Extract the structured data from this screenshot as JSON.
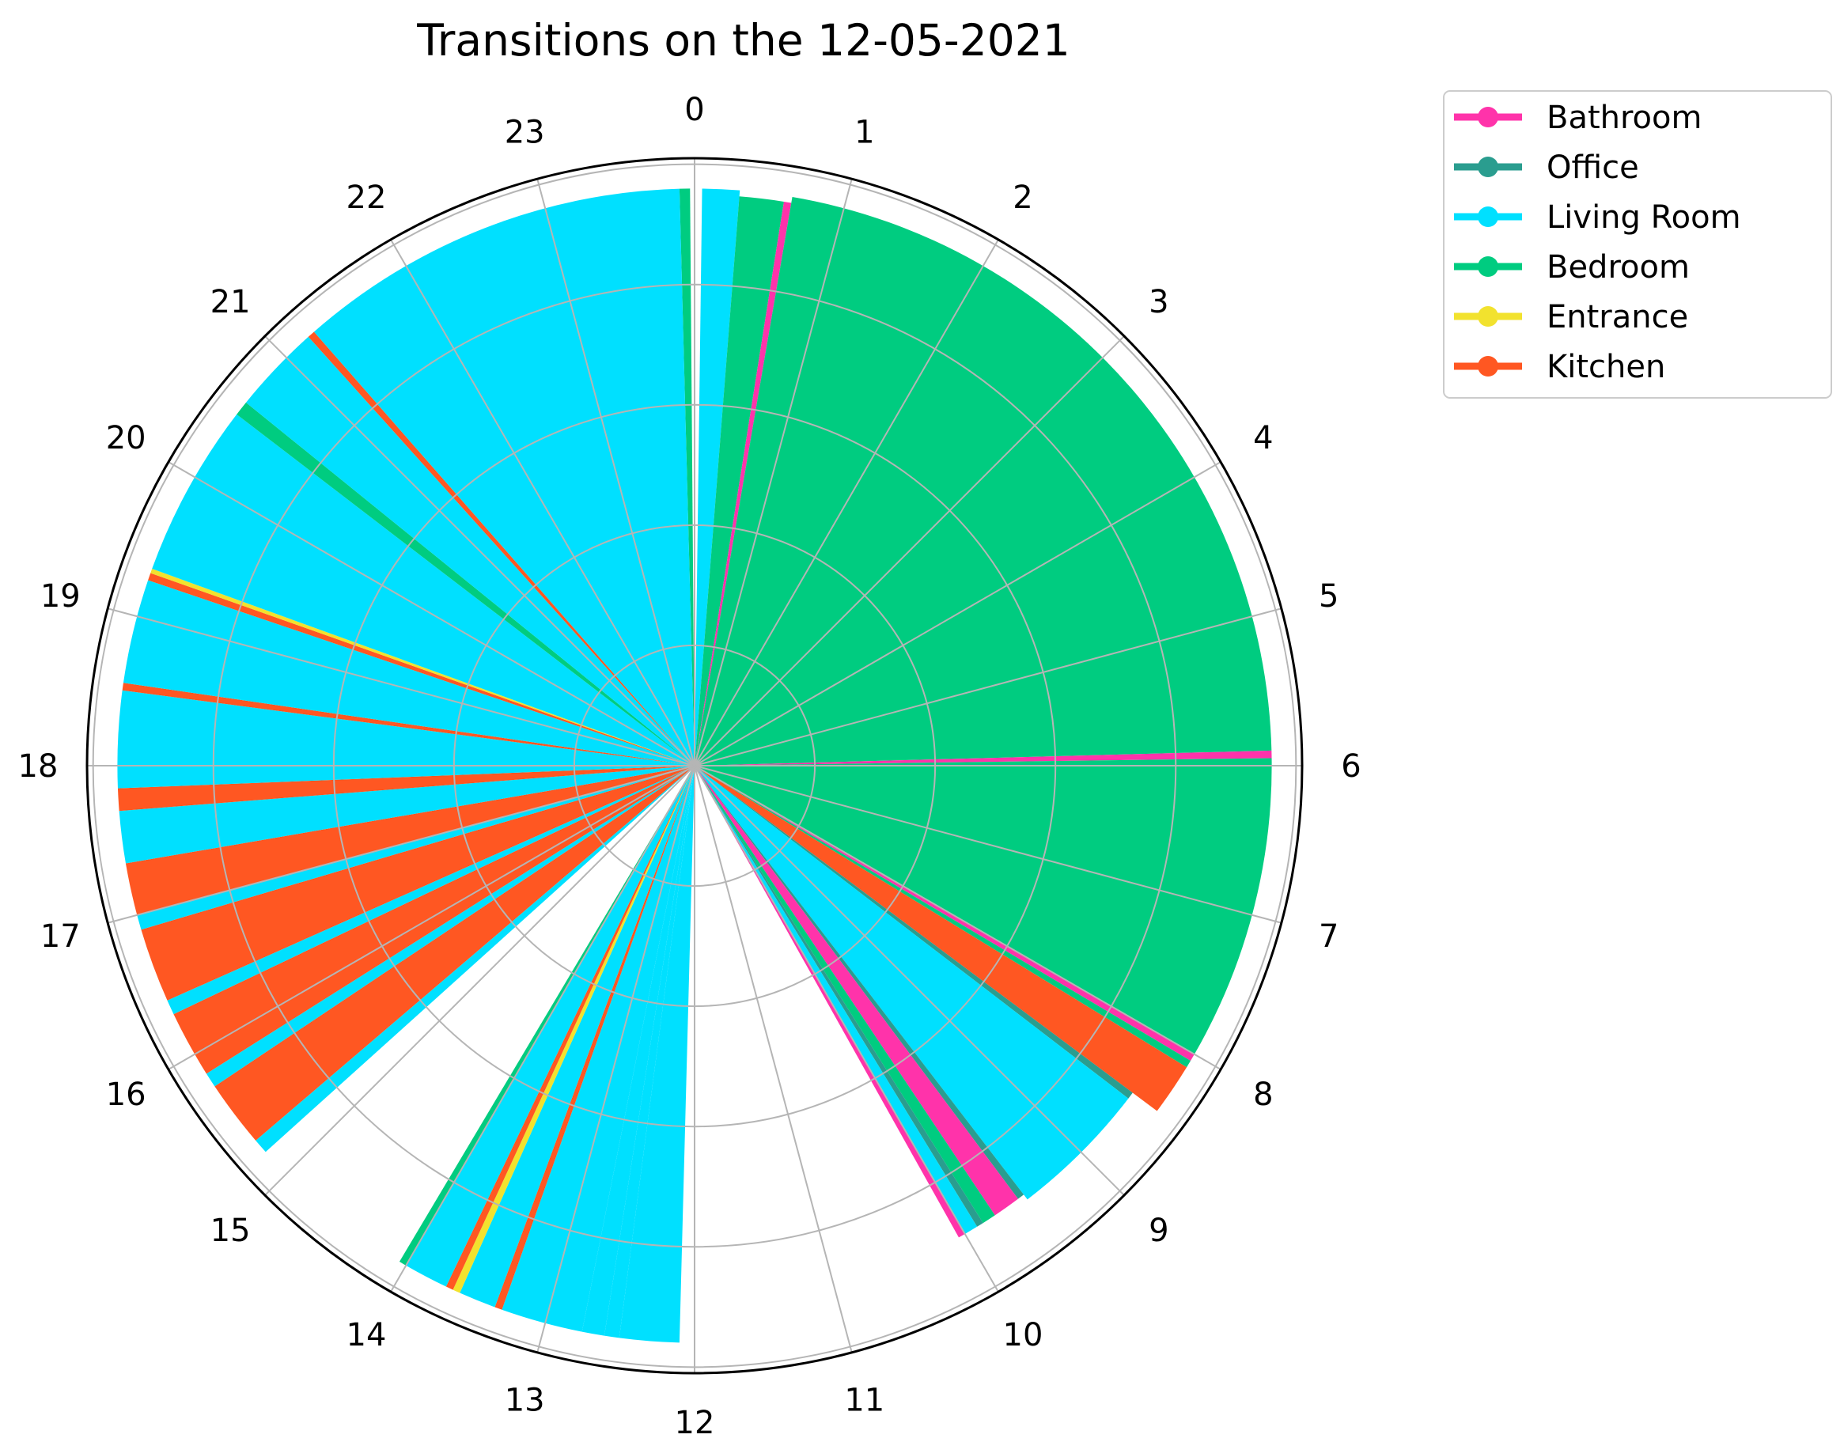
{
  "chart_data": {
    "type": "polar-bar",
    "title": "Transitions on the 12-05-2021",
    "angular_ticks": [
      "0",
      "1",
      "2",
      "3",
      "4",
      "5",
      "6",
      "7",
      "8",
      "9",
      "10",
      "11",
      "12",
      "13",
      "14",
      "15",
      "16",
      "17",
      "18",
      "19",
      "20",
      "21",
      "22",
      "23"
    ],
    "angular_range": [
      0,
      24
    ],
    "direction": "clockwise",
    "zero_location": "top",
    "radial_grid": true,
    "radial_ticks_visible": false,
    "legend_position": "right",
    "legend": [
      {
        "name": "Bathroom",
        "color": "#ff33aa"
      },
      {
        "name": "Office",
        "color": "#2a9d8f"
      },
      {
        "name": "Living Room",
        "color": "#00e0ff"
      },
      {
        "name": "Bedroom",
        "color": "#00cc80"
      },
      {
        "name": "Entrance",
        "color": "#f2e22e"
      },
      {
        "name": "Kitchen",
        "color": "#ff5722"
      }
    ],
    "segments": [
      {
        "start": 23.9,
        "end": 23.97,
        "room": "Bedroom",
        "radius": 0.95
      },
      {
        "start": 0.05,
        "end": 0.3,
        "room": "Living Room",
        "radius": 0.95
      },
      {
        "start": 0.3,
        "end": 0.6,
        "room": "Bedroom",
        "radius": 0.94
      },
      {
        "start": 0.6,
        "end": 0.65,
        "room": "Bathroom",
        "radius": 0.94
      },
      {
        "start": 0.65,
        "end": 5.9,
        "room": "Bedroom",
        "radius": 0.95
      },
      {
        "start": 5.9,
        "end": 5.95,
        "room": "Bathroom",
        "radius": 0.95
      },
      {
        "start": 5.95,
        "end": 8.0,
        "room": "Bedroom",
        "radius": 0.95
      },
      {
        "start": 8.0,
        "end": 8.05,
        "room": "Bathroom",
        "radius": 0.95
      },
      {
        "start": 8.05,
        "end": 8.1,
        "room": "Bedroom",
        "radius": 0.95
      },
      {
        "start": 8.1,
        "end": 8.45,
        "room": "Kitchen",
        "radius": 0.95
      },
      {
        "start": 8.45,
        "end": 8.5,
        "room": "Office",
        "radius": 0.9
      },
      {
        "start": 8.5,
        "end": 9.5,
        "room": "Living Room",
        "radius": 0.9
      },
      {
        "start": 9.5,
        "end": 9.55,
        "room": "Office",
        "radius": 0.89
      },
      {
        "start": 9.55,
        "end": 9.75,
        "room": "Bathroom",
        "radius": 0.89
      },
      {
        "start": 9.75,
        "end": 9.85,
        "room": "Bedroom",
        "radius": 0.89
      },
      {
        "start": 9.85,
        "end": 9.9,
        "room": "Office",
        "radius": 0.89
      },
      {
        "start": 9.9,
        "end": 10.0,
        "room": "Living Room",
        "radius": 0.89
      },
      {
        "start": 10.0,
        "end": 10.05,
        "room": "Bathroom",
        "radius": 0.89
      },
      {
        "start": 12.1,
        "end": 12.5,
        "room": "Living Room",
        "radius": 0.95
      },
      {
        "start": 12.5,
        "end": 12.6,
        "room": "Living Room",
        "radius": 0.95
      },
      {
        "start": 12.6,
        "end": 12.75,
        "room": "Living Room",
        "radius": 0.95
      },
      {
        "start": 12.75,
        "end": 13.3,
        "room": "Living Room",
        "radius": 0.95
      },
      {
        "start": 13.3,
        "end": 13.35,
        "room": "Kitchen",
        "radius": 0.95
      },
      {
        "start": 13.35,
        "end": 13.6,
        "room": "Living Room",
        "radius": 0.95
      },
      {
        "start": 13.6,
        "end": 13.65,
        "room": "Entrance",
        "radius": 0.95
      },
      {
        "start": 13.65,
        "end": 13.7,
        "room": "Kitchen",
        "radius": 0.95
      },
      {
        "start": 13.7,
        "end": 14.0,
        "room": "Living Room",
        "radius": 0.95
      },
      {
        "start": 14.0,
        "end": 14.05,
        "room": "Bedroom",
        "radius": 0.95
      },
      {
        "start": 15.2,
        "end": 15.3,
        "room": "Living Room",
        "radius": 0.95
      },
      {
        "start": 15.3,
        "end": 15.75,
        "room": "Kitchen",
        "radius": 0.95
      },
      {
        "start": 15.75,
        "end": 15.85,
        "room": "Living Room",
        "radius": 0.95
      },
      {
        "start": 15.85,
        "end": 16.3,
        "room": "Kitchen",
        "radius": 0.95
      },
      {
        "start": 16.3,
        "end": 16.4,
        "room": "Living Room",
        "radius": 0.95
      },
      {
        "start": 16.4,
        "end": 16.9,
        "room": "Kitchen",
        "radius": 0.95
      },
      {
        "start": 16.9,
        "end": 17.0,
        "room": "Living Room",
        "radius": 0.95
      },
      {
        "start": 17.0,
        "end": 17.35,
        "room": "Kitchen",
        "radius": 0.95
      },
      {
        "start": 17.35,
        "end": 17.7,
        "room": "Living Room",
        "radius": 0.95
      },
      {
        "start": 17.7,
        "end": 17.85,
        "room": "Kitchen",
        "radius": 0.95
      },
      {
        "start": 17.85,
        "end": 18.5,
        "room": "Living Room",
        "radius": 0.95
      },
      {
        "start": 18.5,
        "end": 18.55,
        "room": "Kitchen",
        "radius": 0.95
      },
      {
        "start": 18.55,
        "end": 19.25,
        "room": "Living Room",
        "radius": 0.95
      },
      {
        "start": 19.25,
        "end": 19.3,
        "room": "Kitchen",
        "radius": 0.95
      },
      {
        "start": 19.3,
        "end": 19.33,
        "room": "Entrance",
        "radius": 0.95
      },
      {
        "start": 19.33,
        "end": 20.5,
        "room": "Living Room",
        "radius": 0.95
      },
      {
        "start": 20.5,
        "end": 20.6,
        "room": "Bedroom",
        "radius": 0.95
      },
      {
        "start": 20.6,
        "end": 21.2,
        "room": "Living Room",
        "radius": 0.95
      },
      {
        "start": 21.2,
        "end": 21.25,
        "room": "Kitchen",
        "radius": 0.95
      },
      {
        "start": 21.25,
        "end": 23.9,
        "room": "Living Room",
        "radius": 0.95
      }
    ]
  }
}
